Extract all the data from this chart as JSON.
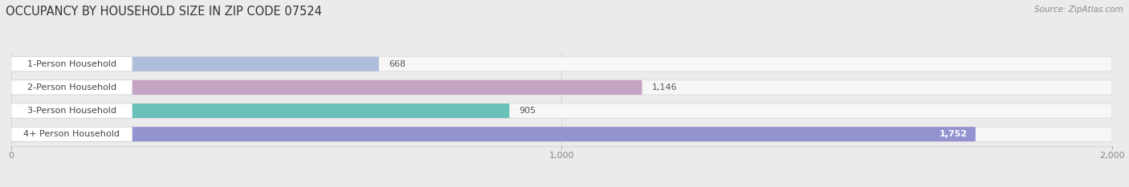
{
  "title": "OCCUPANCY BY HOUSEHOLD SIZE IN ZIP CODE 07524",
  "source": "Source: ZipAtlas.com",
  "categories": [
    "1-Person Household",
    "2-Person Household",
    "3-Person Household",
    "4+ Person Household"
  ],
  "values": [
    668,
    1146,
    905,
    1752
  ],
  "bar_colors": [
    "#a8b8d8",
    "#c09abe",
    "#5abcb4",
    "#8888cc"
  ],
  "background_color": "#ebebeb",
  "bar_bg_color": "#f7f7f7",
  "label_bg_color": "#ffffff",
  "xlim": [
    0,
    2000
  ],
  "xticks": [
    0,
    1000,
    2000
  ],
  "value_labels": [
    "668",
    "1,146",
    "905",
    "1,752"
  ],
  "title_fontsize": 10.5,
  "source_fontsize": 7.5,
  "label_fontsize": 8,
  "tick_fontsize": 8,
  "value_fontsize": 8
}
